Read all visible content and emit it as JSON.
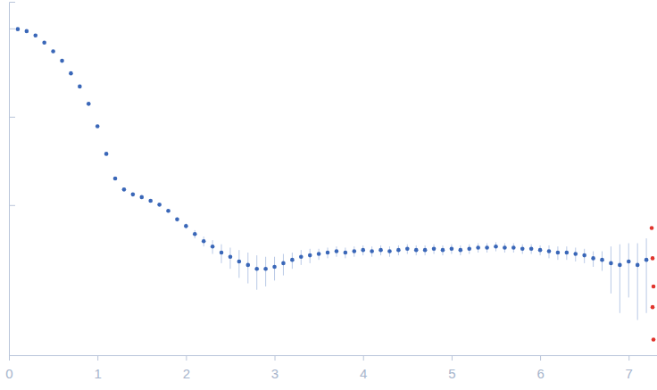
{
  "chart_data": {
    "type": "scatter",
    "log": "y",
    "tick_labels": "x",
    "marker": "circle",
    "xlim": [
      0,
      7.32
    ],
    "xticks": [
      0,
      1,
      2,
      3,
      4,
      5,
      6,
      7
    ],
    "ylim": [
      0.0002,
      2
    ],
    "yticks": [
      0.01,
      0.1,
      1
    ],
    "series": [
      {
        "color": "#3a67b8",
        "x": [
          0.1,
          0.2,
          0.3,
          0.4,
          0.5,
          0.6,
          0.7,
          0.8,
          0.9,
          1.0,
          1.1,
          1.2,
          1.3,
          1.4,
          1.5,
          1.6,
          1.7,
          1.8,
          1.9,
          2.0,
          2.1,
          2.2,
          2.3,
          2.4,
          2.5,
          2.6,
          2.7,
          2.8,
          2.9,
          3.0,
          3.1,
          3.2,
          3.3,
          3.4,
          3.5,
          3.6,
          3.7,
          3.8,
          3.9,
          4.0,
          4.1,
          4.2,
          4.3,
          4.4,
          4.5,
          4.6,
          4.7,
          4.8,
          4.9,
          5.0,
          5.1,
          5.2,
          5.3,
          5.4,
          5.5,
          5.6,
          5.7,
          5.8,
          5.9,
          6.0,
          6.1,
          6.2,
          6.3,
          6.4,
          6.5,
          6.6,
          6.7,
          6.8,
          6.9,
          7.0,
          7.1,
          7.2
        ],
        "values": [
          0.98,
          0.93,
          0.83,
          0.69,
          0.55,
          0.43,
          0.31,
          0.22,
          0.14,
          0.078,
          0.038,
          0.02,
          0.015,
          0.0132,
          0.0123,
          0.0112,
          0.0101,
          0.0086,
          0.0069,
          0.0058,
          0.0047,
          0.0039,
          0.0034,
          0.0029,
          0.0026,
          0.0023,
          0.0021,
          0.0019,
          0.0019,
          0.002,
          0.0022,
          0.0024,
          0.0026,
          0.0027,
          0.0028,
          0.0029,
          0.003,
          0.0029,
          0.003,
          0.0031,
          0.003,
          0.0031,
          0.003,
          0.0031,
          0.0032,
          0.0031,
          0.0031,
          0.0032,
          0.0031,
          0.0032,
          0.0031,
          0.0032,
          0.0033,
          0.0033,
          0.0034,
          0.0033,
          0.0033,
          0.0032,
          0.0032,
          0.0031,
          0.003,
          0.0029,
          0.0029,
          0.0028,
          0.0027,
          0.0025,
          0.0024,
          0.0022,
          0.0021,
          0.0023,
          0.0021,
          0.0024
        ],
        "errors": [
          0.004,
          0.004,
          0.004,
          0.004,
          0.003,
          0.003,
          0.002,
          0.002,
          0.001,
          0.001,
          0.0005,
          0.0003,
          0.0003,
          0.0003,
          0.0003,
          0.0003,
          0.0003,
          0.0003,
          0.0004,
          0.0004,
          0.0005,
          0.0005,
          0.0006,
          0.0007,
          0.0007,
          0.0008,
          0.0008,
          0.0008,
          0.0007,
          0.0006,
          0.0006,
          0.0005,
          0.0005,
          0.0005,
          0.0004,
          0.0004,
          0.0004,
          0.0004,
          0.0004,
          0.0004,
          0.0004,
          0.0004,
          0.0004,
          0.0004,
          0.0004,
          0.0004,
          0.0004,
          0.0004,
          0.0004,
          0.0004,
          0.0004,
          0.0004,
          0.0004,
          0.0004,
          0.0004,
          0.0004,
          0.0004,
          0.0004,
          0.0004,
          0.0004,
          0.0005,
          0.0005,
          0.0005,
          0.0005,
          0.0005,
          0.0005,
          0.0006,
          0.0012,
          0.0015,
          0.0014,
          0.0016,
          0.0018
        ]
      },
      {
        "color": "#e0342c",
        "x": [
          7.26,
          7.27,
          7.28,
          7.27,
          7.28
        ],
        "values": [
          0.0055,
          0.0025,
          0.0012,
          0.0007,
          0.0003
        ]
      }
    ]
  }
}
